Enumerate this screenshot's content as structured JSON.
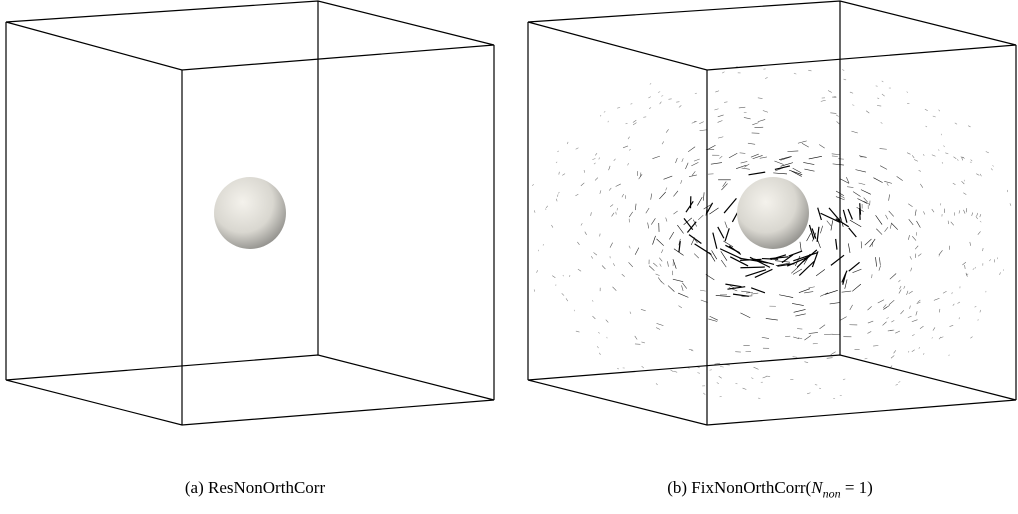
{
  "figures": [
    {
      "caption": {
        "label": "(a)",
        "text": "ResNonOrthCorr"
      }
    },
    {
      "caption": {
        "label": "(b)",
        "text": "FixNonOrthCorr(",
        "math_base": "N",
        "math_sub": "non",
        "math_rest": " = 1)"
      }
    }
  ]
}
